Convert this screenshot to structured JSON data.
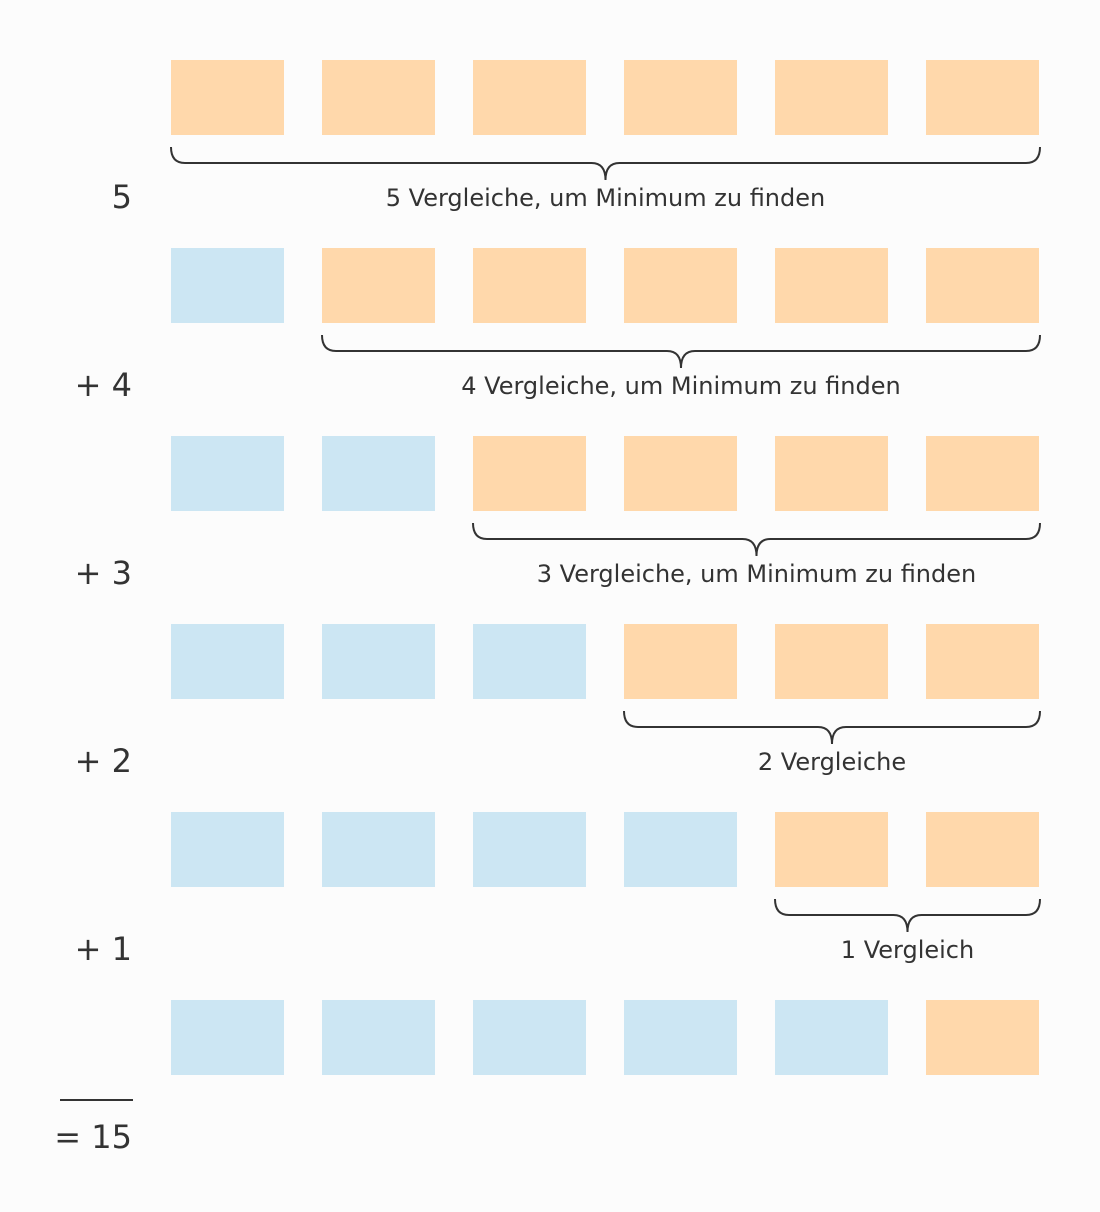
{
  "rows": [
    {
      "count": "5",
      "label": "5 Vergleiche, um Minimum zu finden"
    },
    {
      "count": "+ 4",
      "label": "4 Vergleiche, um Minimum zu finden"
    },
    {
      "count": "+ 3",
      "label": "3 Vergleiche, um Minimum zu finden"
    },
    {
      "count": "+ 2",
      "label": "2 Vergleiche"
    },
    {
      "count": "+ 1",
      "label": "1 Vergleich"
    }
  ],
  "total": "= 15"
}
